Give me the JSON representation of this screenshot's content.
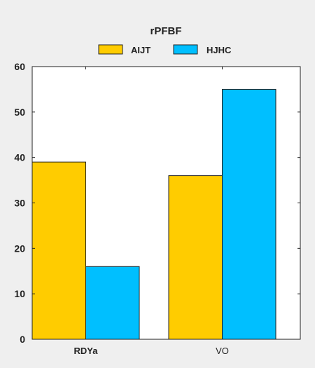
{
  "chart_data": {
    "type": "bar",
    "title": "rPFBF",
    "categories": [
      "RDYa",
      "VO"
    ],
    "series": [
      {
        "name": "AIJT",
        "color": "#ffcc00",
        "values": [
          39,
          36
        ]
      },
      {
        "name": "HJHC",
        "color": "#00bfff",
        "values": [
          16,
          55
        ]
      }
    ],
    "xlabel": "",
    "ylabel": "",
    "ylim": [
      0,
      60
    ],
    "yticks": [
      0,
      10,
      20,
      30,
      40,
      50,
      60
    ],
    "legend_position": "top-center",
    "grid": false
  },
  "colors": {
    "background": "#efefef",
    "plot_background": "#ffffff",
    "axis": "#222222"
  }
}
